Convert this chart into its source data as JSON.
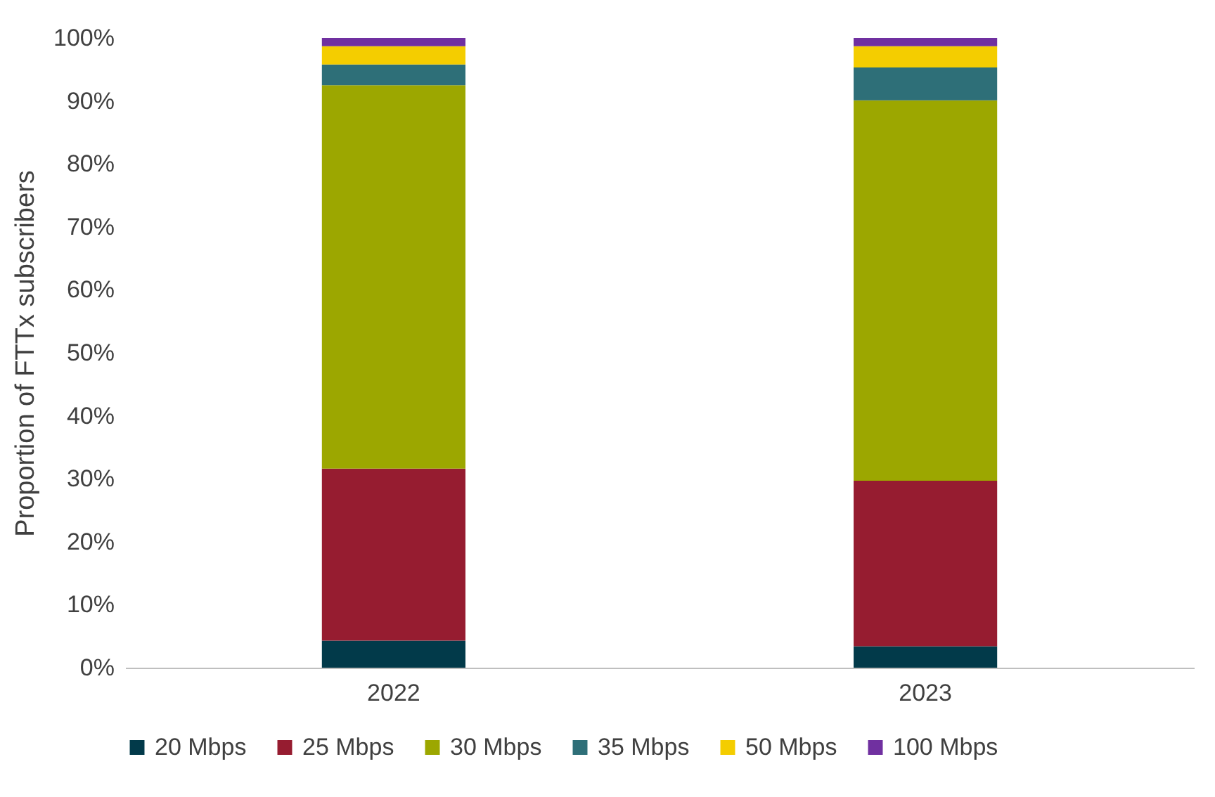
{
  "chart_data": {
    "type": "bar",
    "stacked": true,
    "ylabel": "Proportion of FTTx subscribers",
    "categories": [
      "2022",
      "2023"
    ],
    "series": [
      {
        "name": "20 Mbps",
        "color": "#023a4a",
        "values": [
          4.3,
          3.4
        ]
      },
      {
        "name": "25 Mbps",
        "color": "#961c30",
        "values": [
          27.3,
          26.3
        ]
      },
      {
        "name": "30 Mbps",
        "color": "#9ca700",
        "values": [
          60.9,
          60.4
        ]
      },
      {
        "name": "35 Mbps",
        "color": "#2e6f78",
        "values": [
          3.3,
          5.2
        ]
      },
      {
        "name": "50 Mbps",
        "color": "#f4cd00",
        "values": [
          2.9,
          3.4
        ]
      },
      {
        "name": "100 Mbps",
        "color": "#7030a0",
        "values": [
          1.3,
          1.3
        ]
      }
    ],
    "ylim": [
      0,
      100
    ],
    "yticks": [
      {
        "value": 0,
        "label": "0%"
      },
      {
        "value": 10,
        "label": "10%"
      },
      {
        "value": 20,
        "label": "20%"
      },
      {
        "value": 30,
        "label": "30%"
      },
      {
        "value": 40,
        "label": "40%"
      },
      {
        "value": 50,
        "label": "50%"
      },
      {
        "value": 60,
        "label": "60%"
      },
      {
        "value": 70,
        "label": "70%"
      },
      {
        "value": 80,
        "label": "80%"
      },
      {
        "value": 90,
        "label": "90%"
      },
      {
        "value": 100,
        "label": "100%"
      }
    ],
    "grid": false,
    "legend": "bottom"
  }
}
